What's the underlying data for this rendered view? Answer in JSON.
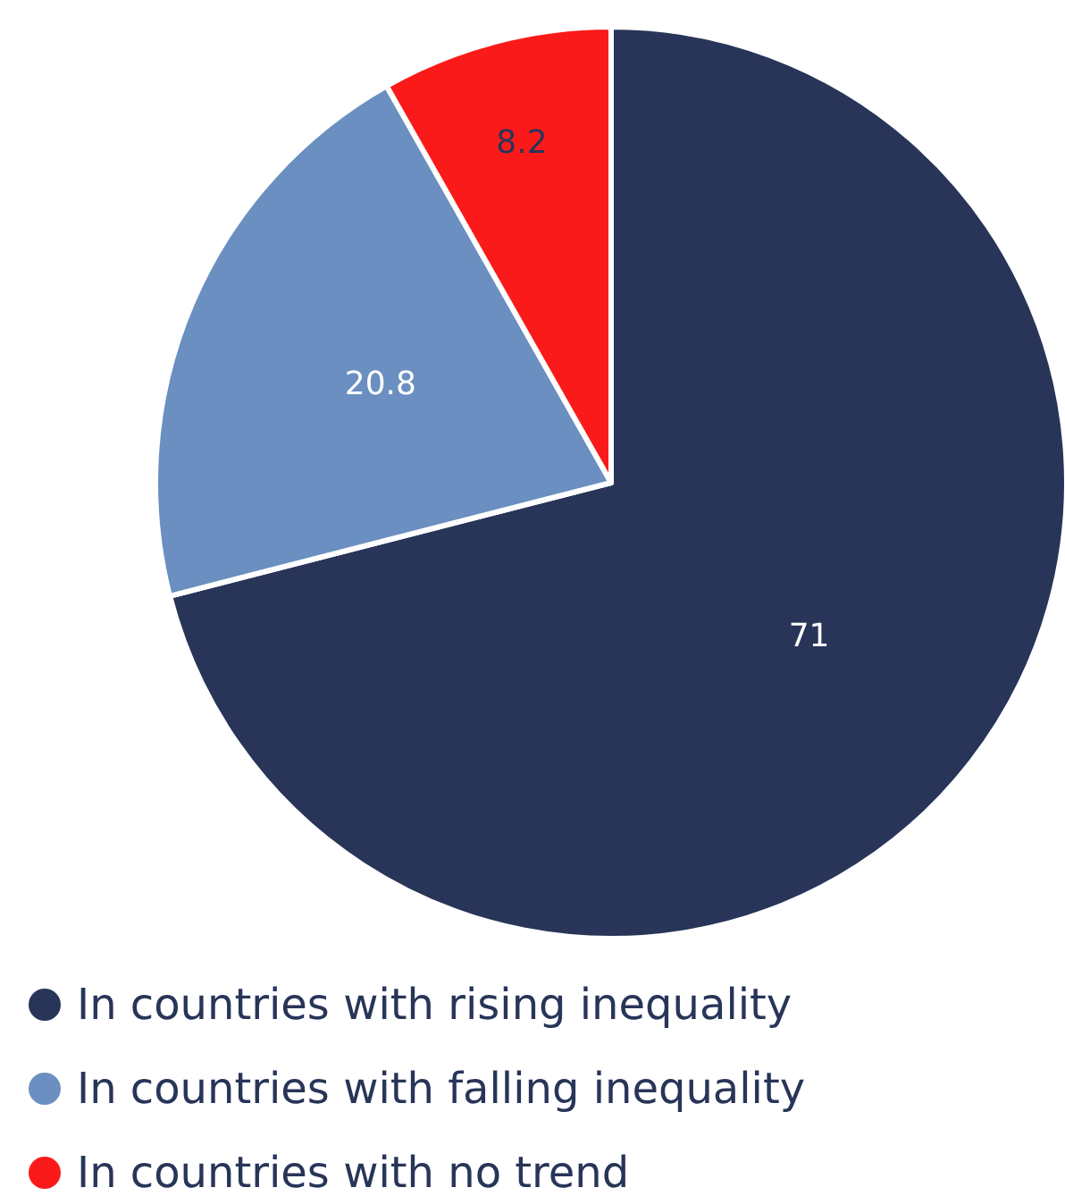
{
  "chart_data": {
    "type": "pie",
    "categories": [
      "In countries with rising inequality",
      "In countries with falling inequality",
      "In countries with no trend"
    ],
    "values": [
      71,
      20.8,
      8.2
    ],
    "colors": [
      "#283559",
      "#6a8fc0",
      "#fb1a1a"
    ],
    "data_labels": true,
    "legend": "bottom"
  }
}
